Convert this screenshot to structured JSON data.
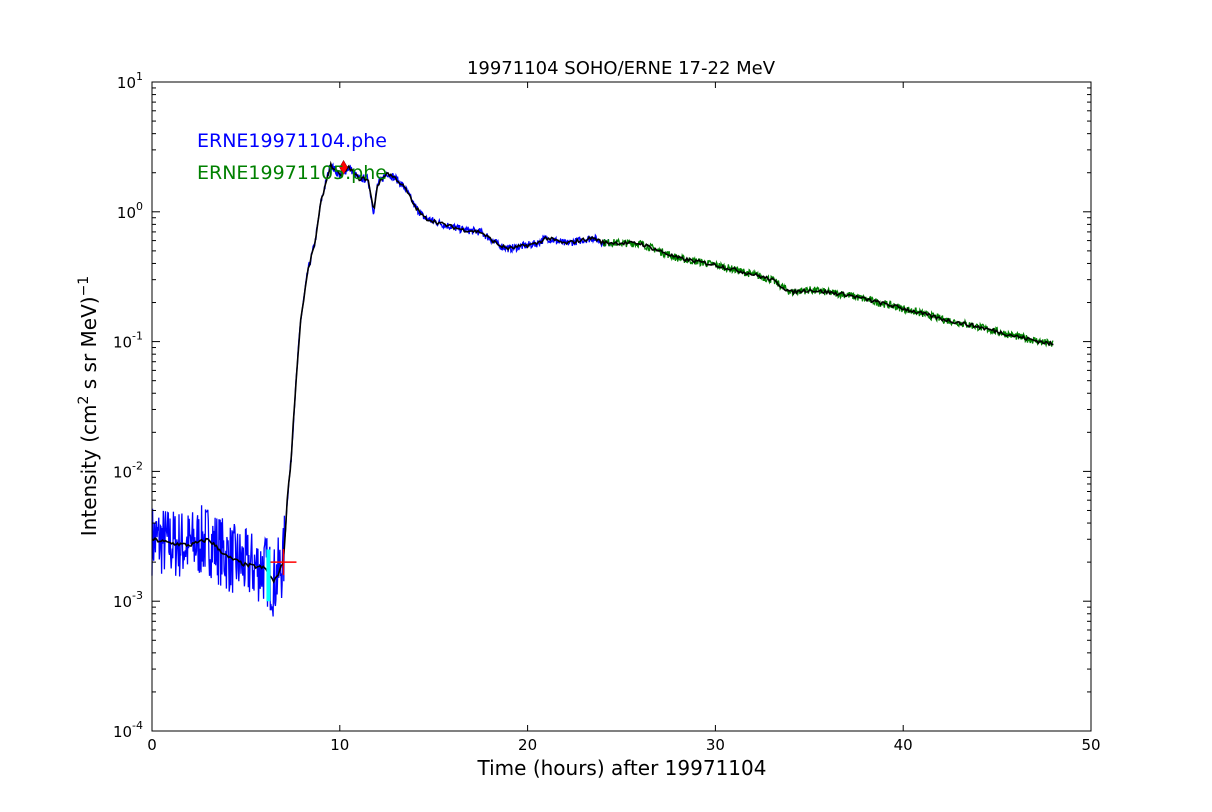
{
  "chart_data": {
    "type": "line",
    "title": "19971104 SOHO/ERNE 17-22 MeV",
    "xlabel": "Time (hours) after 19971104",
    "ylabel_main": "Intensity (cm",
    "ylabel_sup1": "2",
    "ylabel_rest": "  s sr MeV)",
    "ylabel_sup2": "−1",
    "xlim": [
      0,
      50
    ],
    "ylim": [
      0.0001,
      10
    ],
    "yscale": "log",
    "x_ticks": [
      {
        "v": 0,
        "label": "0"
      },
      {
        "v": 10,
        "label": "10"
      },
      {
        "v": 20,
        "label": "20"
      },
      {
        "v": 30,
        "label": "30"
      },
      {
        "v": 40,
        "label": "40"
      },
      {
        "v": 50,
        "label": "50"
      }
    ],
    "y_ticks": [
      {
        "exp": -4,
        "base": "10",
        "sup": "-4"
      },
      {
        "exp": -3,
        "base": "10",
        "sup": "-3"
      },
      {
        "exp": -2,
        "base": "10",
        "sup": "-2"
      },
      {
        "exp": -1,
        "base": "10",
        "sup": "-1"
      },
      {
        "exp": 0,
        "base": "10",
        "sup": "0"
      },
      {
        "exp": 1,
        "base": "10",
        "sup": "1"
      }
    ],
    "legend": [
      {
        "label": "ERNE19971104.phe",
        "color": "#0000ff"
      },
      {
        "label": "ERNE19971105.phe",
        "color": "#008000"
      }
    ],
    "series_split_hour": 24,
    "smoothed": {
      "name": "smoothed",
      "color": "#000000",
      "x": [
        0,
        1,
        2,
        3,
        4,
        5,
        6,
        6.5,
        7.0,
        7.2,
        7.4,
        7.6,
        7.9,
        8.3,
        8.7,
        9.0,
        9.5,
        10,
        10.5,
        11,
        11.5,
        11.8,
        12.0,
        12.5,
        13,
        13.5,
        14,
        14.5,
        15.5,
        16.5,
        17.5,
        18.5,
        19,
        20.5,
        21,
        22,
        23.5,
        24,
        26,
        28,
        30,
        32,
        33,
        34,
        35,
        37,
        40,
        42,
        44,
        46,
        48
      ],
      "y": [
        0.003,
        0.0028,
        0.0027,
        0.003,
        0.0022,
        0.0019,
        0.0018,
        0.0014,
        0.002,
        0.006,
        0.012,
        0.035,
        0.14,
        0.35,
        0.6,
        1.2,
        2.3,
        1.9,
        2.2,
        1.8,
        1.8,
        1.0,
        1.6,
        2.0,
        1.8,
        1.5,
        1.1,
        0.9,
        0.8,
        0.73,
        0.7,
        0.55,
        0.52,
        0.57,
        0.63,
        0.57,
        0.63,
        0.58,
        0.57,
        0.44,
        0.39,
        0.33,
        0.3,
        0.24,
        0.25,
        0.23,
        0.18,
        0.15,
        0.13,
        0.11,
        0.095
      ]
    },
    "markers": [
      {
        "name": "peak-marker",
        "shape": "diamond",
        "x": 10.2,
        "y": 2.2,
        "color": "#ff0000"
      },
      {
        "name": "onset-marker",
        "shape": "plus",
        "x": 7.0,
        "y": 0.002,
        "color": "#ff0000"
      },
      {
        "name": "background-end-marker",
        "shape": "vline",
        "x": 6.2,
        "y": [
          0.001,
          0.0025
        ],
        "color": "#00ffff"
      }
    ]
  }
}
